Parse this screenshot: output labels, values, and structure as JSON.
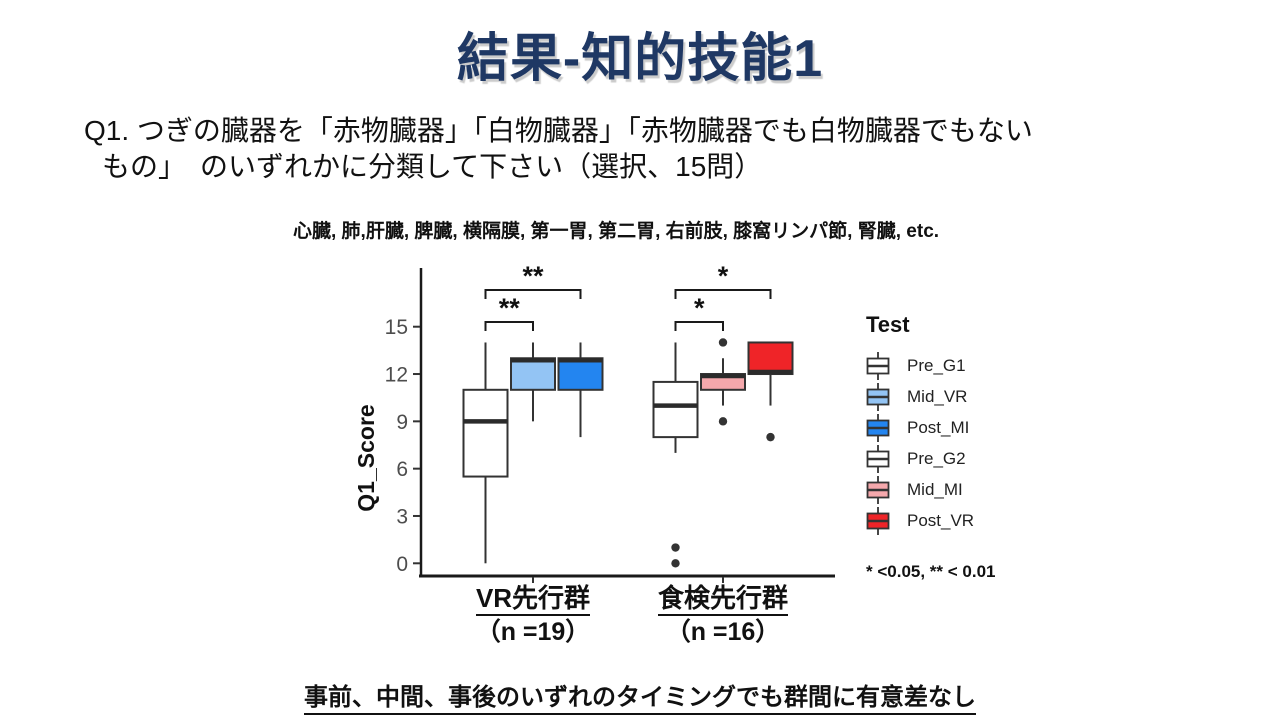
{
  "slide": {
    "title": "結果-知的技能1",
    "title_color": "#1F3864",
    "question_line1": "Q1. つぎの臓器を「赤物臓器」「白物臓器」「赤物臓器でも白物臓器でもない",
    "question_line2": "もの」　のいずれかに分類して下さい（選択、15問）",
    "organ_list": "心臓, 肺,肝臓, 脾臓, 横隔膜, 第一胃, 第二胃, 右前肢, 膝窩リンパ節, 腎臓, etc.",
    "significance_note": "* <0.05,  ** < 0.01",
    "bottom_note": "事前、中間、事後のいずれのタイミングでも群間に有意差なし"
  },
  "chart_data": {
    "type": "boxplot",
    "ylabel": "Q1_Score",
    "y_ticks": [
      0,
      3,
      6,
      9,
      12,
      15
    ],
    "ylim": [
      0,
      18.5
    ],
    "grid": false,
    "legend_title": "Test",
    "legend_position": "right",
    "groups": [
      {
        "label": "VR先行群",
        "sublabel": "（n =19）",
        "n": 19
      },
      {
        "label": "食検先行群",
        "sublabel": "（n =16）",
        "n": 16
      }
    ],
    "series": [
      {
        "name": "Pre_G1",
        "group": 0,
        "fill": "#FFFFFF",
        "whislo": 0,
        "q1": 5.5,
        "med": 9,
        "q3": 11,
        "whishi": 14,
        "outliers": []
      },
      {
        "name": "Mid_VR",
        "group": 0,
        "fill": "#93C4F4",
        "whislo": 9,
        "q1": 11,
        "med": 13,
        "q3": 13,
        "whishi": 14,
        "outliers": []
      },
      {
        "name": "Post_MI",
        "group": 0,
        "fill": "#2385F0",
        "whislo": 8,
        "q1": 11,
        "med": 13,
        "q3": 13,
        "whishi": 14,
        "outliers": []
      },
      {
        "name": "Pre_G2",
        "group": 1,
        "fill": "#FFFFFF",
        "whislo": 7,
        "q1": 8,
        "med": 10,
        "q3": 11.5,
        "whishi": 14,
        "outliers": [
          1,
          0
        ]
      },
      {
        "name": "Mid_MI",
        "group": 1,
        "fill": "#F5A8AC",
        "whislo": 10,
        "q1": 11,
        "med": 12,
        "q3": 12,
        "whishi": 13,
        "outliers": [
          14,
          9
        ]
      },
      {
        "name": "Post_VR",
        "group": 1,
        "fill": "#EF2428",
        "whislo": 10,
        "q1": 12,
        "med": 12,
        "q3": 14,
        "whishi": 14,
        "outliers": [
          8
        ]
      }
    ],
    "significance": [
      {
        "group": 0,
        "from": 0,
        "to": 1,
        "label": "**"
      },
      {
        "group": 0,
        "from": 0,
        "to": 2,
        "label": "**"
      },
      {
        "group": 1,
        "from": 0,
        "to": 1,
        "label": "*"
      },
      {
        "group": 1,
        "from": 0,
        "to": 2,
        "label": "*"
      }
    ]
  }
}
